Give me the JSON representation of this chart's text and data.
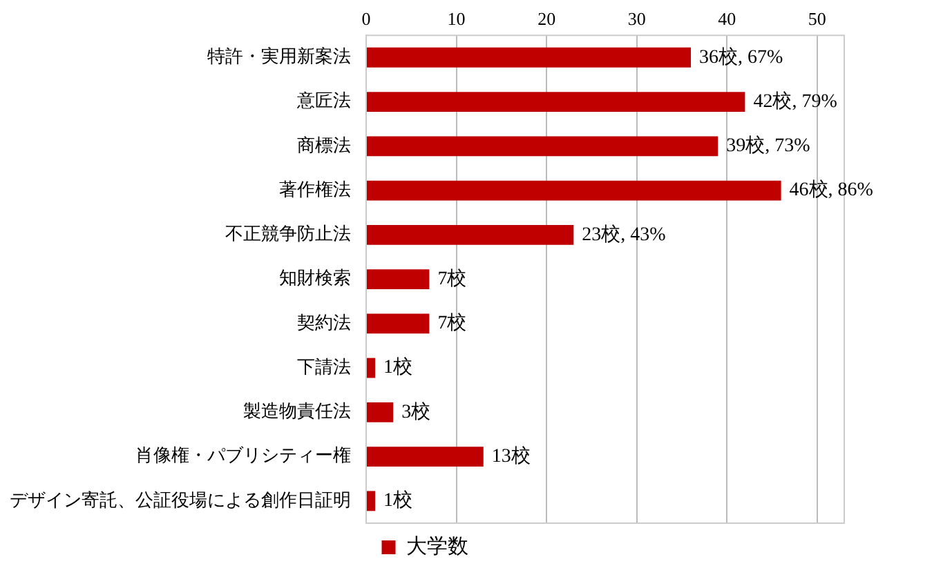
{
  "chart_data": {
    "type": "bar",
    "orientation": "horizontal",
    "categories": [
      "特許・実用新案法",
      "意匠法",
      "商標法",
      "著作権法",
      "不正競争防止法",
      "知財検索",
      "契約法",
      "下請法",
      "製造物責任法",
      "肖像権・パブリシティー権",
      "デザイン寄託、公証役場による創作日証明"
    ],
    "series": [
      {
        "name": "大学数",
        "color": "#c00000",
        "values": [
          36,
          42,
          39,
          46,
          23,
          7,
          7,
          1,
          3,
          13,
          1
        ],
        "value_labels": [
          "36校, 67%",
          "42校, 79%",
          "39校, 73%",
          "46校, 86%",
          "23校, 43%",
          "7校",
          "7校",
          "1校",
          "3校",
          "13校",
          "1校"
        ]
      }
    ],
    "xlim": [
      0,
      53
    ],
    "xticks": [
      0,
      10,
      20,
      30,
      40,
      50
    ],
    "grid": "x",
    "legend": "bottom"
  }
}
